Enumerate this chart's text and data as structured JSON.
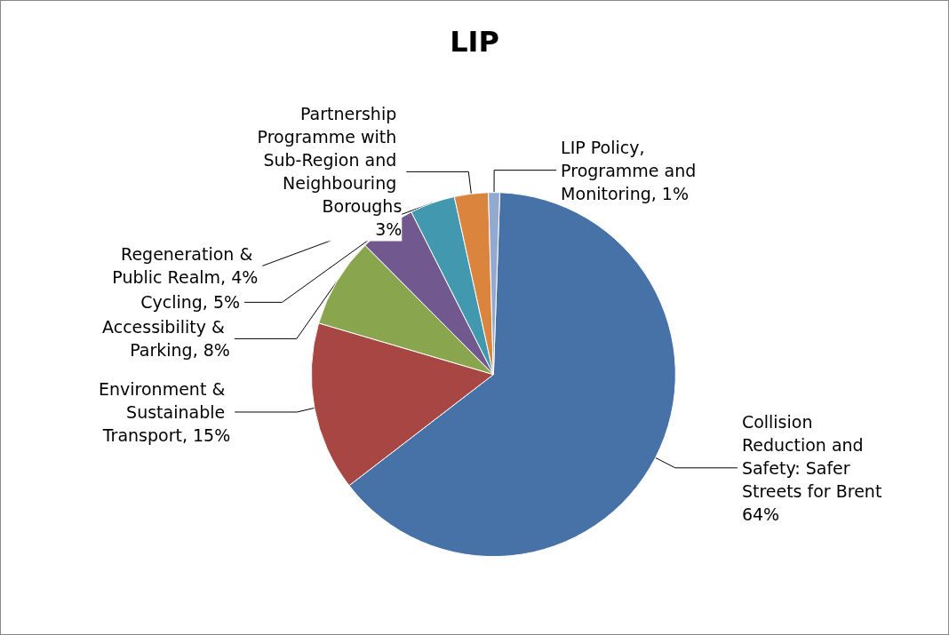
{
  "chart_data": {
    "type": "pie",
    "title": "LIP",
    "categories": [
      "Collision Reduction and Safety: Safer Streets for Brent",
      "Environment & Sustainable Transport",
      "Accessibility & Parking",
      "Cycling",
      "Regeneration & Public Realm",
      "Partnership Programme with Sub-Region and Neighbouring Boroughs",
      "LIP Policy, Programme and Monitoring"
    ],
    "values": [
      64,
      15,
      8,
      5,
      4,
      3,
      1
    ],
    "value_labels": [
      "64%",
      "15%",
      "8%",
      "5%",
      "4%",
      "3%",
      "1%"
    ],
    "colors": [
      "#4672a8",
      "#a84643",
      "#89a54e",
      "#71588f",
      "#4198af",
      "#db843d",
      "#93a9cf"
    ],
    "legend": false
  }
}
